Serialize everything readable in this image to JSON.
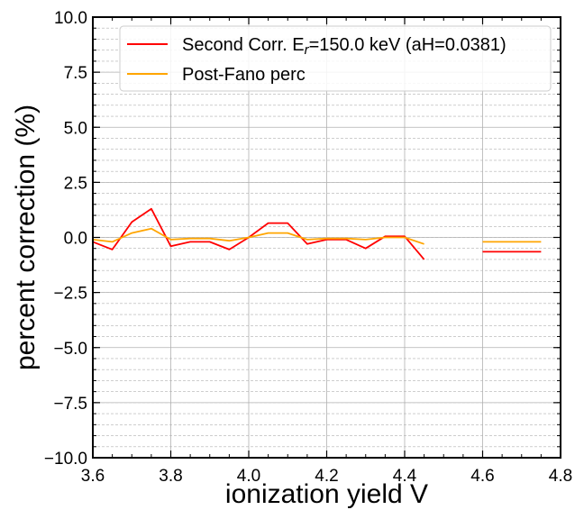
{
  "chart_data": {
    "type": "line",
    "xlabel": "ionization yield V",
    "ylabel": "percent correction (%)",
    "xlim": [
      3.6,
      4.8
    ],
    "ylim": [
      -10.0,
      10.0
    ],
    "x_ticks": [
      3.6,
      3.8,
      4.0,
      4.2,
      4.4,
      4.6,
      4.8
    ],
    "x_tick_labels": [
      "3.6",
      "3.8",
      "4.0",
      "4.2",
      "4.4",
      "4.6",
      "4.8"
    ],
    "y_ticks": [
      -10,
      -7.5,
      -5,
      -2.5,
      0,
      2.5,
      5,
      7.5,
      10
    ],
    "y_tick_labels": [
      "−10.0",
      "−7.5",
      "−5.0",
      "−2.5",
      "0.0",
      "2.5",
      "5.0",
      "7.5",
      "10.0"
    ],
    "grid": true,
    "legend_position": "top-right",
    "series": [
      {
        "name": "Second Corr. E_r=150.0 keV (aH=0.0381)",
        "legend_parts": {
          "prefix": "Second Corr. E",
          "subscript": "r",
          "suffix": "=150.0 keV (aH=0.0381)"
        },
        "color": "#ff0000",
        "segments": [
          {
            "x": [
              3.6,
              3.65,
              3.7,
              3.75,
              3.8,
              3.85,
              3.9,
              3.95,
              4.0,
              4.05,
              4.1,
              4.15,
              4.2,
              4.25,
              4.3,
              4.35,
              4.4,
              4.45
            ],
            "y": [
              -0.2,
              -0.55,
              0.7,
              1.3,
              -0.4,
              -0.2,
              -0.2,
              -0.55,
              0.0,
              0.65,
              0.65,
              -0.3,
              -0.1,
              -0.1,
              -0.5,
              0.05,
              0.05,
              -1.0
            ]
          },
          {
            "x": [
              4.6,
              4.75
            ],
            "y": [
              -0.65,
              -0.65
            ]
          }
        ]
      },
      {
        "name": "Post-Fano perc",
        "color": "#ffa500",
        "segments": [
          {
            "x": [
              3.6,
              3.65,
              3.7,
              3.75,
              3.8,
              3.85,
              3.9,
              3.95,
              4.0,
              4.05,
              4.1,
              4.15,
              4.2,
              4.25,
              4.3,
              4.35,
              4.4,
              4.45
            ],
            "y": [
              -0.1,
              -0.2,
              0.2,
              0.4,
              -0.1,
              -0.05,
              -0.05,
              -0.15,
              0.0,
              0.2,
              0.2,
              -0.1,
              -0.05,
              -0.05,
              -0.1,
              0.0,
              0.0,
              -0.3
            ]
          },
          {
            "x": [
              4.6,
              4.75
            ],
            "y": [
              -0.2,
              -0.2
            ]
          }
        ]
      }
    ]
  }
}
